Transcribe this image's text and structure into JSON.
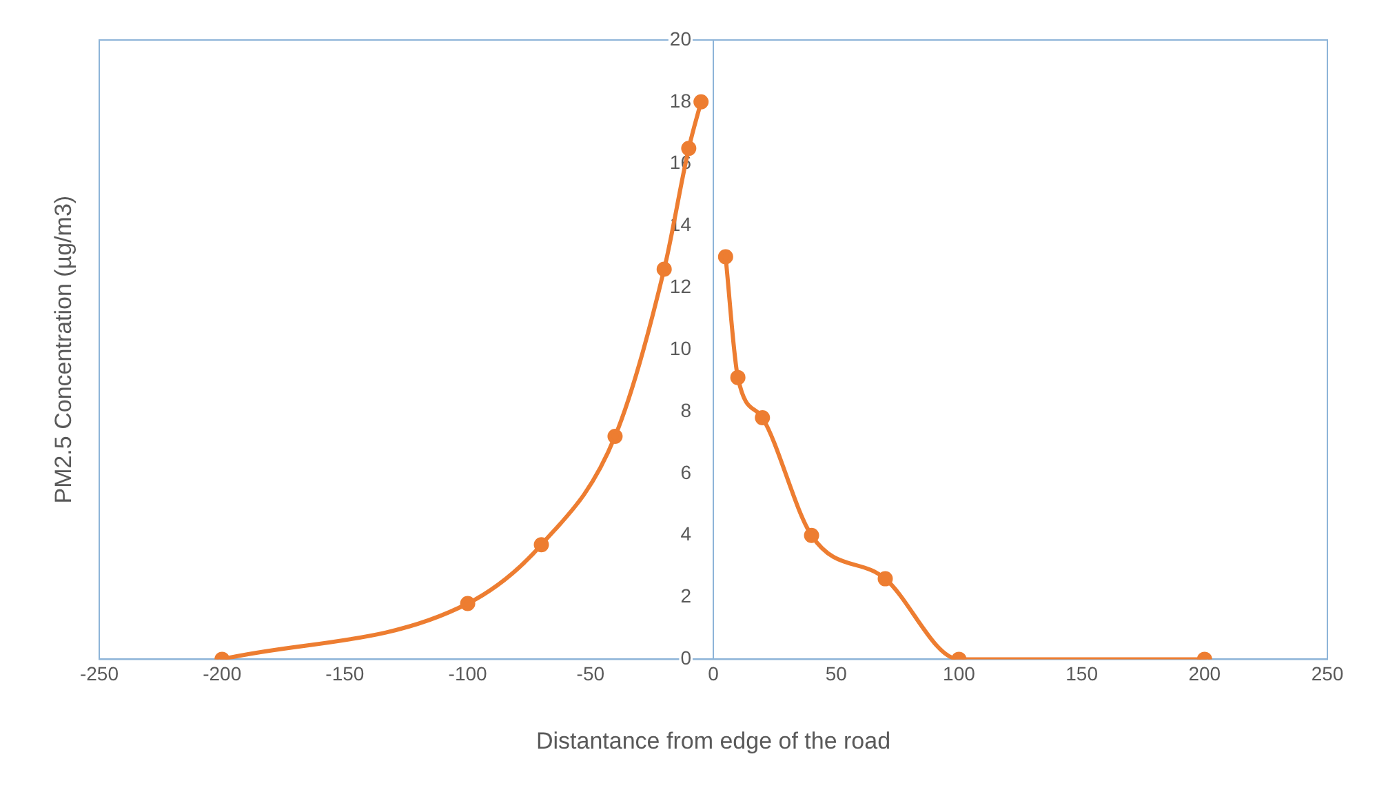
{
  "chart_data": {
    "type": "line",
    "xlabel": "Distantance from edge of the road",
    "ylabel": "PM2.5 Concentration (µg/m3)",
    "series": [
      {
        "color": "#ed7d31",
        "x": [
          -200,
          -100,
          -70,
          -40,
          -20,
          -10,
          -5
        ],
        "values": [
          0,
          1.8,
          3.7,
          7.2,
          12.6,
          16.5,
          18
        ]
      },
      {
        "color": "#ed7d31",
        "x": [
          5,
          10,
          20,
          40,
          70,
          100,
          200
        ],
        "values": [
          13,
          9.1,
          7.8,
          4,
          2.6,
          0,
          0
        ]
      }
    ],
    "xlim": [
      -250,
      250
    ],
    "xticks": [
      -250,
      -200,
      -150,
      -100,
      -50,
      0,
      50,
      100,
      150,
      200,
      250
    ],
    "ylim": [
      0,
      20
    ],
    "yticks": [
      0,
      2,
      4,
      6,
      8,
      10,
      12,
      14,
      16,
      18,
      20
    ],
    "grid": false,
    "legend": false,
    "marker": "circle",
    "line_style": "solid"
  }
}
